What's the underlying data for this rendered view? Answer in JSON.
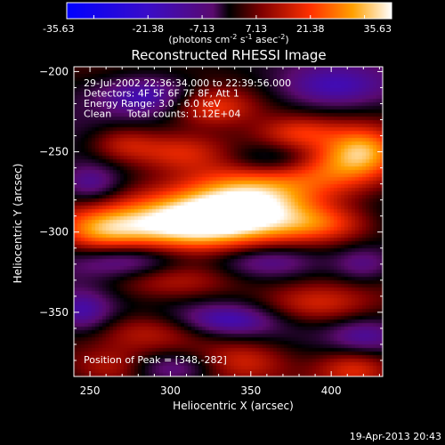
{
  "chart_data": {
    "type": "heatmap",
    "title": "Reconstructed RHESSI Image",
    "xlabel": "Heliocentric X (arcsec)",
    "ylabel": "Heliocentric Y (arcsec)",
    "xlim": [
      240,
      432
    ],
    "ylim": [
      -390,
      -197
    ],
    "x_ticks": [
      250,
      300,
      350,
      400
    ],
    "y_ticks": [
      -200,
      -250,
      -300,
      -350
    ],
    "colorbar": {
      "ticks": [
        "-35.63",
        "-21.38",
        "-7.13",
        "7.13",
        "21.38",
        "35.63"
      ],
      "range": [
        -35.63,
        35.63
      ],
      "units_label": "(photons cm",
      "units_sup1": "-2",
      "units_mid1": " s",
      "units_sup2": "-1",
      "units_mid2": " asec",
      "units_sup3": "-2",
      "units_end": ")"
    },
    "annotations": [
      "29-Jul-2002 22:36:34.000 to 22:39:56.000",
      "Detectors: 4F 5F 6F 7F 8F, Att 1",
      "Energy Range: 3.0 - 6.0 keV",
      "Clean     Total counts: 1.12E+04"
    ],
    "peak_label": "Position of Peak = [348,-282]",
    "peak": [
      348,
      -282
    ],
    "features": [
      {
        "x": 350,
        "y": -280,
        "value": 35.63,
        "sx": 32,
        "sy": 16
      },
      {
        "x": 305,
        "y": -295,
        "value": 30,
        "sx": 35,
        "sy": 12
      },
      {
        "x": 255,
        "y": -300,
        "value": 18,
        "sx": 20,
        "sy": 10
      },
      {
        "x": 405,
        "y": -260,
        "value": 20,
        "sx": 25,
        "sy": 12
      },
      {
        "x": 420,
        "y": -248,
        "value": 17,
        "sx": 15,
        "sy": 10
      },
      {
        "x": 305,
        "y": -250,
        "value": 16,
        "sx": 22,
        "sy": 9
      },
      {
        "x": 325,
        "y": -222,
        "value": 15,
        "sx": 18,
        "sy": 8
      },
      {
        "x": 270,
        "y": -245,
        "value": 12,
        "sx": 15,
        "sy": 8
      },
      {
        "x": 380,
        "y": -238,
        "value": 12,
        "sx": 18,
        "sy": 7
      },
      {
        "x": 395,
        "y": -295,
        "value": 14,
        "sx": 22,
        "sy": 8
      },
      {
        "x": 300,
        "y": -330,
        "value": 15,
        "sx": 30,
        "sy": 9
      },
      {
        "x": 390,
        "y": -345,
        "value": 15,
        "sx": 25,
        "sy": 9
      },
      {
        "x": 415,
        "y": -385,
        "value": 16,
        "sx": 18,
        "sy": 9
      },
      {
        "x": 345,
        "y": -380,
        "value": 12,
        "sx": 20,
        "sy": 9
      },
      {
        "x": 290,
        "y": -362,
        "value": 10,
        "sx": 25,
        "sy": 8
      },
      {
        "x": 265,
        "y": -385,
        "value": 10,
        "sx": 18,
        "sy": 8
      },
      {
        "x": 285,
        "y": -215,
        "value": -18,
        "sx": 22,
        "sy": 9
      },
      {
        "x": 400,
        "y": -210,
        "value": -15,
        "sx": 25,
        "sy": 10
      },
      {
        "x": 365,
        "y": -255,
        "value": -12,
        "sx": 20,
        "sy": 7
      },
      {
        "x": 250,
        "y": -270,
        "value": -14,
        "sx": 14,
        "sy": 9
      },
      {
        "x": 275,
        "y": -318,
        "value": -15,
        "sx": 25,
        "sy": 8
      },
      {
        "x": 360,
        "y": -318,
        "value": -16,
        "sx": 25,
        "sy": 8
      },
      {
        "x": 420,
        "y": -320,
        "value": -12,
        "sx": 14,
        "sy": 8
      },
      {
        "x": 245,
        "y": -350,
        "value": -15,
        "sx": 14,
        "sy": 10
      },
      {
        "x": 335,
        "y": -355,
        "value": -14,
        "sx": 22,
        "sy": 7
      },
      {
        "x": 420,
        "y": -365,
        "value": -10,
        "sx": 15,
        "sy": 8
      },
      {
        "x": 300,
        "y": -385,
        "value": -14,
        "sx": 20,
        "sy": 7
      }
    ]
  },
  "footer": {
    "date": "19-Apr-2013 20:43"
  }
}
